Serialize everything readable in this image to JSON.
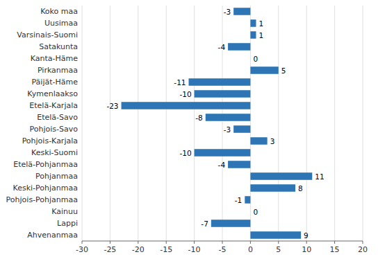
{
  "chart_data": {
    "type": "bar",
    "orientation": "horizontal",
    "categories": [
      "Koko maa",
      "Uusimaa",
      "Varsinais-Suomi",
      "Satakunta",
      "Kanta-Häme",
      "Pirkanmaa",
      "Päijät-Häme",
      "Kymenlaakso",
      "Etelä-Karjala",
      "Etelä-Savo",
      "Pohjois-Savo",
      "Pohjois-Karjala",
      "Keski-Suomi",
      "Etelä-Pohjanmaa",
      "Pohjanmaa",
      "Keski-Pohjanmaa",
      "Pohjois-Pohjanmaa",
      "Kainuu",
      "Lappi",
      "Ahvenanmaa"
    ],
    "values": [
      -3,
      1,
      1,
      -4,
      0,
      5,
      -11,
      -10,
      -23,
      -8,
      -3,
      3,
      -10,
      -4,
      11,
      8,
      -1,
      0,
      -7,
      9
    ],
    "color": "#2E75B6",
    "xlim": [
      -30,
      20
    ],
    "xticks": [
      -30,
      -25,
      -20,
      -15,
      -10,
      -5,
      0,
      5,
      10,
      15,
      20
    ],
    "grid": true,
    "data_labels": true
  }
}
